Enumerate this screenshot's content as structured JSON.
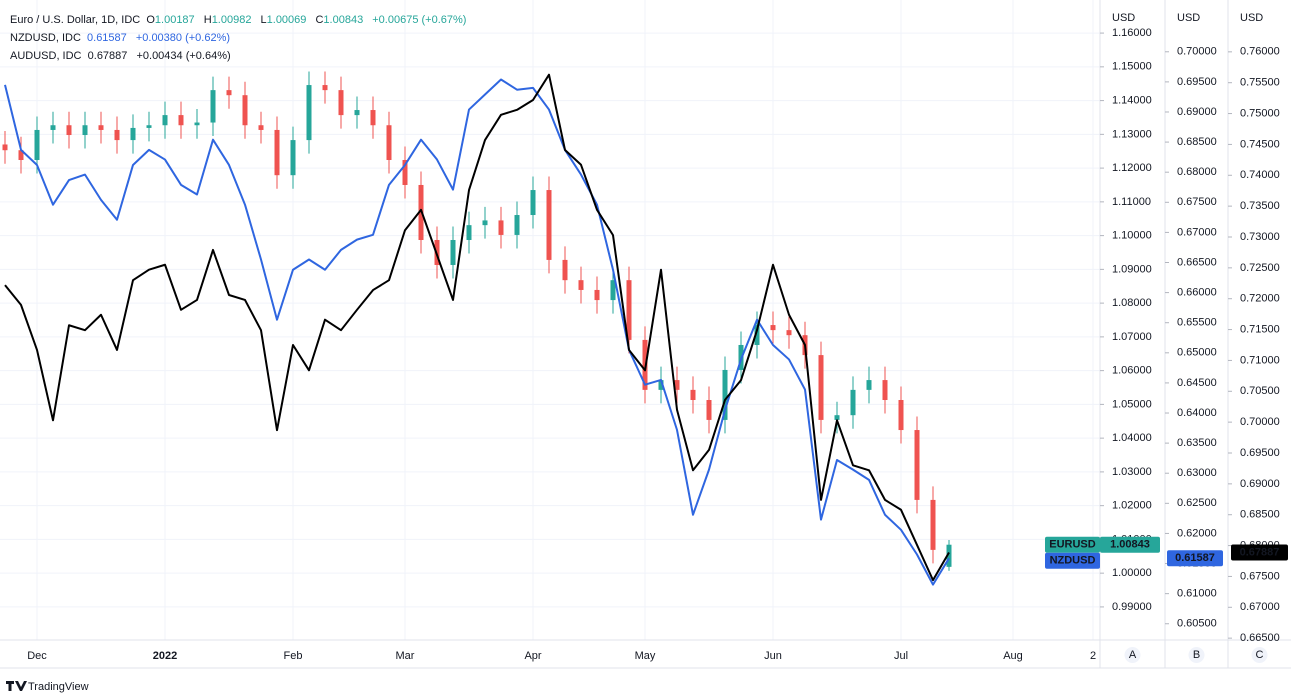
{
  "chart_data": {
    "type": "candlestick",
    "legend": [
      {
        "title": "Euro / U.S. Dollar, 1D, IDC",
        "change": "+0.00675 (+0.67%)"
      },
      {
        "title": "NZDUSD, IDC",
        "change": "+0.00380 (+0.62%)"
      },
      {
        "title": "AUDUSD, IDC",
        "change": "+0.00434 (+0.64%)"
      }
    ],
    "ohlc_labels": [
      "O",
      "H",
      "L",
      "C"
    ],
    "up_color": "#26a69a",
    "down_color": "#ef5350",
    "categories": [
      null,
      null,
      "Dec",
      null,
      null,
      null,
      null,
      null,
      null,
      null,
      "2022",
      null,
      null,
      null,
      null,
      null,
      null,
      null,
      "Feb",
      null,
      null,
      null,
      null,
      null,
      null,
      "Mar",
      null,
      null,
      null,
      null,
      null,
      null,
      null,
      "Apr",
      null,
      null,
      null,
      null,
      null,
      null,
      "May",
      null,
      null,
      null,
      null,
      null,
      null,
      null,
      "Jun",
      null,
      null,
      null,
      null,
      null,
      null,
      null,
      "Jul",
      null,
      null,
      null,
      null,
      null,
      null,
      "Aug",
      null,
      null,
      null,
      null,
      "2"
    ],
    "series": [
      {
        "name": "EURUSD",
        "type": "candlestick",
        "axis": "y",
        "open": [
          1.127,
          1.1253,
          1.1224,
          1.1313,
          1.1327,
          1.1298,
          1.1327,
          1.1313,
          1.1283,
          1.1319,
          1.1327,
          1.1357,
          1.1327,
          1.1335,
          1.1431,
          1.1416,
          1.1327,
          1.1313,
          1.1179,
          1.1283,
          1.1446,
          1.1431,
          1.1357,
          1.1372,
          1.1327,
          1.1224,
          1.115,
          1.0987,
          1.0913,
          1.0987,
          1.1031,
          1.1045,
          1.1002,
          1.1061,
          1.1135,
          1.0928,
          1.0868,
          1.0839,
          1.0809,
          1.0868,
          1.0691,
          1.0543,
          1.0572,
          1.0543,
          1.0513,
          1.0454,
          1.0602,
          1.0676,
          1.0735,
          1.072,
          1.0705,
          1.0646,
          1.0454,
          1.0468,
          1.0543,
          1.0572,
          1.0513,
          1.0424,
          1.0217,
          1.00187,
          null,
          null,
          null,
          null,
          null,
          null,
          null,
          null,
          null
        ],
        "high": [
          1.131,
          1.1293,
          1.1353,
          1.1367,
          1.1367,
          1.1367,
          1.1367,
          1.1353,
          1.1359,
          1.1367,
          1.1397,
          1.1397,
          1.1375,
          1.1471,
          1.1471,
          1.1456,
          1.1367,
          1.1353,
          1.1323,
          1.1486,
          1.1486,
          1.1471,
          1.1412,
          1.1412,
          1.1367,
          1.1264,
          1.119,
          1.1027,
          1.1027,
          1.1071,
          1.1085,
          1.1085,
          1.1101,
          1.1175,
          1.1175,
          1.0968,
          1.0908,
          1.0879,
          1.0908,
          1.0908,
          1.0731,
          1.0612,
          1.0612,
          1.0583,
          1.0553,
          1.0642,
          1.0716,
          1.0775,
          1.0775,
          1.076,
          1.0745,
          1.0686,
          1.0508,
          1.0583,
          1.0612,
          1.0612,
          1.0553,
          1.0464,
          1.0257,
          1.00982,
          null,
          null,
          null,
          null,
          null,
          null,
          null,
          null,
          null
        ],
        "low": [
          1.1213,
          1.1184,
          1.1184,
          1.1273,
          1.1258,
          1.1258,
          1.1273,
          1.1243,
          1.1243,
          1.1279,
          1.1287,
          1.1287,
          1.1287,
          1.1295,
          1.1376,
          1.1287,
          1.1273,
          1.1139,
          1.1139,
          1.1243,
          1.1391,
          1.1317,
          1.1317,
          1.1287,
          1.1184,
          1.111,
          1.0947,
          1.0873,
          1.0873,
          1.0947,
          1.0991,
          1.0962,
          1.0962,
          1.1021,
          1.0888,
          1.0828,
          1.0799,
          1.0769,
          1.0769,
          1.0651,
          1.0503,
          1.0503,
          1.0503,
          1.0473,
          1.0414,
          1.0414,
          1.0562,
          1.0636,
          1.068,
          1.0665,
          1.0606,
          1.0414,
          1.0414,
          1.0428,
          1.0503,
          1.0473,
          1.0384,
          1.0177,
          1.0029,
          1.00069,
          null,
          null,
          null,
          null,
          null,
          null,
          null,
          null,
          null
        ],
        "close": [
          1.1253,
          1.1224,
          1.1313,
          1.1327,
          1.1298,
          1.1327,
          1.1313,
          1.1283,
          1.1319,
          1.1327,
          1.1357,
          1.1327,
          1.1335,
          1.1431,
          1.1416,
          1.1327,
          1.1313,
          1.1179,
          1.1283,
          1.1446,
          1.1431,
          1.1357,
          1.1372,
          1.1327,
          1.1224,
          1.115,
          1.0987,
          1.0913,
          1.0987,
          1.1031,
          1.1045,
          1.1002,
          1.1061,
          1.1135,
          1.0928,
          1.0868,
          1.0839,
          1.0809,
          1.0868,
          1.0691,
          1.0543,
          1.0572,
          1.0543,
          1.0513,
          1.0454,
          1.0602,
          1.0676,
          1.0735,
          1.072,
          1.0705,
          1.0646,
          1.0454,
          1.0468,
          1.0543,
          1.0572,
          1.0513,
          1.0424,
          1.0217,
          1.0069,
          1.00843,
          null,
          null,
          null,
          null,
          null,
          null,
          null,
          null,
          null
        ]
      },
      {
        "name": "NZDUSD",
        "color": "#2f66e0",
        "axis": "y2",
        "values": [
          0.6945,
          0.6837,
          0.6812,
          0.6746,
          0.6787,
          0.6796,
          0.6754,
          0.6721,
          0.6812,
          0.6837,
          0.6821,
          0.6779,
          0.6763,
          0.6854,
          0.6812,
          0.6746,
          0.6655,
          0.6555,
          0.6638,
          0.6655,
          0.6638,
          0.6671,
          0.6688,
          0.6696,
          0.6779,
          0.6812,
          0.6854,
          0.6821,
          0.6771,
          0.6904,
          0.6929,
          0.6954,
          0.6937,
          0.694,
          0.6904,
          0.6837,
          0.6796,
          0.6746,
          0.6638,
          0.6505,
          0.6447,
          0.6455,
          0.6372,
          0.6231,
          0.6306,
          0.6405,
          0.6489,
          0.6555,
          0.6513,
          0.6489,
          0.6439,
          0.6223,
          0.6322,
          0.6306,
          0.6289,
          0.6231,
          0.6206,
          0.6165,
          0.6115,
          0.61587,
          null,
          null,
          null,
          null,
          null,
          null,
          null,
          null,
          null
        ]
      },
      {
        "color": "#000000",
        "axis": "y3",
        "values": [
          0.7222,
          0.719,
          0.7117,
          0.7003,
          0.7157,
          0.7149,
          0.7174,
          0.7117,
          0.723,
          0.7247,
          0.7255,
          0.7182,
          0.7198,
          0.7279,
          0.7206,
          0.7198,
          0.7149,
          0.6987,
          0.7125,
          0.7084,
          0.7166,
          0.7149,
          0.7182,
          0.7214,
          0.723,
          0.7311,
          0.7344,
          0.7271,
          0.7198,
          0.7376,
          0.7457,
          0.7498,
          0.7506,
          0.7522,
          0.7563,
          0.7441,
          0.7417,
          0.7344,
          0.7303,
          0.7117,
          0.7084,
          0.7247,
          0.702,
          0.6922,
          0.6955,
          0.7036,
          0.7068,
          0.7149,
          0.7255,
          0.7174,
          0.7125,
          0.6874,
          0.7003,
          0.693,
          0.6922,
          0.6874,
          0.6858,
          0.6801,
          0.6744,
          0.67887,
          null,
          null,
          null,
          null,
          null,
          null,
          null,
          null,
          null
        ]
      }
    ],
    "ylabel": "USD",
    "y2label": "USD",
    "y3label": "USD",
    "scale_names": [
      "A",
      "B",
      "C"
    ],
    "ylim": [
      0.9802,
      1.1698
    ],
    "y2lim": [
      0.6023,
      0.7086
    ],
    "y3lim": [
      0.6647,
      0.7684
    ],
    "yticks": [
      {
        "value": 1.16,
        "label": "1.16000"
      },
      {
        "value": 1.15,
        "label": "1.15000"
      },
      {
        "value": 1.14,
        "label": "1.14000"
      },
      {
        "value": 1.13,
        "label": "1.13000"
      },
      {
        "value": 1.12,
        "label": "1.12000"
      },
      {
        "value": 1.11,
        "label": "1.11000"
      },
      {
        "value": 1.1,
        "label": "1.10000"
      },
      {
        "value": 1.09,
        "label": "1.09000"
      },
      {
        "value": 1.08,
        "label": "1.08000"
      },
      {
        "value": 1.07,
        "label": "1.07000"
      },
      {
        "value": 1.06,
        "label": "1.06000"
      },
      {
        "value": 1.05,
        "label": "1.05000"
      },
      {
        "value": 1.04,
        "label": "1.04000"
      },
      {
        "value": 1.03,
        "label": "1.03000"
      },
      {
        "value": 1.02,
        "label": "1.02000"
      },
      {
        "value": 1.01,
        "label": "1.01000"
      },
      {
        "value": 1.0,
        "label": "1.00000"
      },
      {
        "value": 0.99,
        "label": "0.99000"
      }
    ],
    "y2ticks": [
      {
        "value": 0.7,
        "label": "0.70000"
      },
      {
        "value": 0.695,
        "label": "0.69500"
      },
      {
        "value": 0.69,
        "label": "0.69000"
      },
      {
        "value": 0.685,
        "label": "0.68500"
      },
      {
        "value": 0.68,
        "label": "0.68000"
      },
      {
        "value": 0.675,
        "label": "0.67500"
      },
      {
        "value": 0.67,
        "label": "0.67000"
      },
      {
        "value": 0.665,
        "label": "0.66500"
      },
      {
        "value": 0.66,
        "label": "0.66000"
      },
      {
        "value": 0.655,
        "label": "0.65500"
      },
      {
        "value": 0.65,
        "label": "0.65000"
      },
      {
        "value": 0.645,
        "label": "0.64500"
      },
      {
        "value": 0.64,
        "label": "0.64000"
      },
      {
        "value": 0.635,
        "label": "0.63500"
      },
      {
        "value": 0.63,
        "label": "0.63000"
      },
      {
        "value": 0.625,
        "label": "0.62500"
      },
      {
        "value": 0.62,
        "label": "0.62000"
      },
      {
        "value": 0.615,
        "label": "0.61500"
      },
      {
        "value": 0.61,
        "label": "0.61000"
      },
      {
        "value": 0.605,
        "label": "0.60500"
      }
    ],
    "y3ticks": [
      {
        "value": 0.76,
        "label": "0.76000"
      },
      {
        "value": 0.755,
        "label": "0.75500"
      },
      {
        "value": 0.75,
        "label": "0.75000"
      },
      {
        "value": 0.745,
        "label": "0.74500"
      },
      {
        "value": 0.74,
        "label": "0.74000"
      },
      {
        "value": 0.735,
        "label": "0.73500"
      },
      {
        "value": 0.73,
        "label": "0.73000"
      },
      {
        "value": 0.725,
        "label": "0.72500"
      },
      {
        "value": 0.72,
        "label": "0.72000"
      },
      {
        "value": 0.715,
        "label": "0.71500"
      },
      {
        "value": 0.71,
        "label": "0.71000"
      },
      {
        "value": 0.705,
        "label": "0.70500"
      },
      {
        "value": 0.7,
        "label": "0.70000"
      },
      {
        "value": 0.695,
        "label": "0.69500"
      },
      {
        "value": 0.69,
        "label": "0.69000"
      },
      {
        "value": 0.685,
        "label": "0.68500"
      },
      {
        "value": 0.68,
        "label": "0.68000"
      },
      {
        "value": 0.675,
        "label": "0.67500"
      },
      {
        "value": 0.67,
        "label": "0.67000"
      },
      {
        "value": 0.665,
        "label": "0.66500"
      }
    ],
    "grid": true,
    "brand": "TradingView"
  }
}
